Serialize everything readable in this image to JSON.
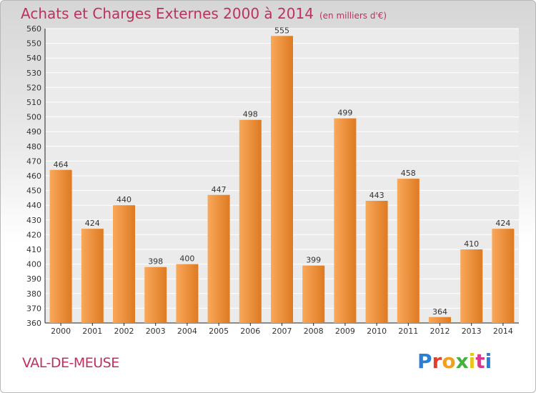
{
  "header": {
    "title": "Achats et Charges Externes 2000 à 2014",
    "subtitle": "(en milliers d'€)"
  },
  "footer": {
    "commune": "VAL-DE-MEUSE",
    "logo_letters": [
      "P",
      "r",
      "o",
      "x",
      "i",
      "t",
      "i"
    ]
  },
  "colors": {
    "title": "#c0305c",
    "bar_light": "#f9a85a",
    "bar_dark": "#de7a22",
    "grid": "#ffffff",
    "plot_background": "#ebebeb"
  },
  "chart_data": {
    "type": "bar",
    "title": "Achats et Charges Externes 2000 à 2014",
    "subtitle": "(en milliers d'€)",
    "categories": [
      "2000",
      "2001",
      "2002",
      "2003",
      "2004",
      "2005",
      "2006",
      "2007",
      "2008",
      "2009",
      "2010",
      "2011",
      "2012",
      "2013",
      "2014"
    ],
    "values": [
      464,
      424,
      440,
      398,
      400,
      447,
      498,
      555,
      399,
      499,
      443,
      458,
      364,
      410,
      424
    ],
    "data_labels": [
      "464",
      "424",
      "440",
      "398",
      "400",
      "447",
      "498",
      "555",
      "399",
      "499",
      "443",
      "458",
      "364",
      "410",
      "424"
    ],
    "ylim": [
      360,
      560
    ],
    "yticks": [
      360,
      370,
      380,
      390,
      400,
      410,
      420,
      430,
      440,
      450,
      460,
      470,
      480,
      490,
      500,
      510,
      520,
      530,
      540,
      550,
      560
    ],
    "xlabel": "",
    "ylabel": "",
    "grid": true
  }
}
